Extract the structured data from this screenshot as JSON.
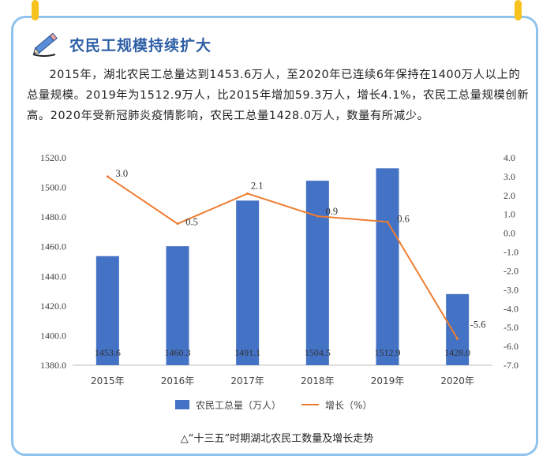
{
  "heading": "农民工规模持续扩大",
  "paragraph": "2015年，湖北农民工总量达到1453.6万人，至2020年已连续6年保持在1400万人以上的总量规模。2019年为1512.9万人，比2015年增加59.3万人，增长4.1%，农民工总量规模创新高。2020年受新冠肺炎疫情影响，农民工总量1428.0万人，数量有所减少。",
  "caption": "△“十三五”时期湖北农民工数量及增长走势",
  "colors": {
    "bar": "#4472c4",
    "line": "#ed7d31",
    "heading": "#2e5fa6",
    "frame": "#8fc3ee",
    "pin": "#f7c21c"
  },
  "chart_data": {
    "type": "bar",
    "categories": [
      "2015年",
      "2016年",
      "2017年",
      "2018年",
      "2019年",
      "2020年"
    ],
    "series": [
      {
        "name": "农民工总量（万人）",
        "type": "bar",
        "axis": "left",
        "values": [
          1453.6,
          1460.3,
          1491.1,
          1504.5,
          1512.9,
          1428.0
        ]
      },
      {
        "name": "增长（%）",
        "type": "line",
        "axis": "right",
        "values": [
          3.0,
          0.5,
          2.1,
          0.9,
          0.6,
          -5.6
        ]
      }
    ],
    "bar_labels": [
      "1453.6",
      "1460.3",
      "1491.1",
      "1504.5",
      "1512.9",
      "1428.0"
    ],
    "line_labels": [
      "3.0",
      "0.5",
      "2.1",
      "0.9",
      "0.6",
      "-5.6"
    ],
    "y_left": {
      "range": [
        1380,
        1520
      ],
      "ticks": [
        "1380.0",
        "1400.0",
        "1420.0",
        "1440.0",
        "1460.0",
        "1480.0",
        "1500.0",
        "1520.0"
      ]
    },
    "y_right": {
      "range": [
        -7,
        4
      ],
      "ticks": [
        "-7.0",
        "-6.0",
        "-5.0",
        "-4.0",
        "-3.0",
        "-2.0",
        "-1.0",
        "0.0",
        "1.0",
        "2.0",
        "3.0",
        "4.0"
      ]
    },
    "legend_position": "bottom",
    "grid": false
  }
}
